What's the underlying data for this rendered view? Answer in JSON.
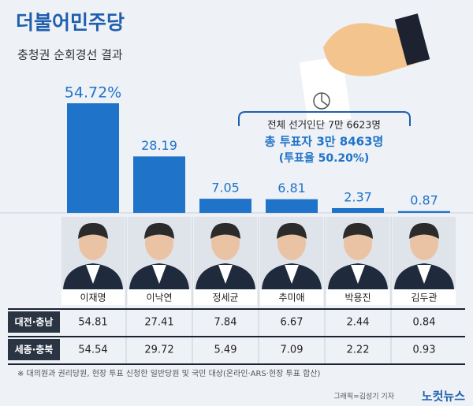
{
  "chart_data": {
    "type": "bar",
    "title": "더불어민주당",
    "subtitle": "충청권 순회경선 결과",
    "categories": [
      "이재명",
      "이낙연",
      "정세균",
      "추미애",
      "박용진",
      "김두관"
    ],
    "values": [
      54.72,
      28.19,
      7.05,
      6.81,
      2.37,
      0.87
    ],
    "value_labels": [
      "54.72%",
      "28.19",
      "7.05",
      "6.81",
      "2.37",
      "0.87"
    ],
    "color": "#1f73c9",
    "annotations": [
      "전체 선거인단 7만 6623명",
      "총 투표자 3만 8463명",
      "(투표율 50.20%)"
    ]
  },
  "table": {
    "rows": [
      {
        "label": "대전·충남",
        "values": [
          54.81,
          27.41,
          7.84,
          6.67,
          2.44,
          0.84
        ]
      },
      {
        "label": "세종·충북",
        "values": [
          54.54,
          29.72,
          5.49,
          7.09,
          2.22,
          0.93
        ]
      }
    ]
  },
  "footnote": "※ 대의원과 권리당원, 현장 투표 신청한 일반당원 및 국민 대상(온라인·ARS·현장 투표 합산)",
  "credit": "그래픽=김성기 기자",
  "logo": "노컷뉴스"
}
